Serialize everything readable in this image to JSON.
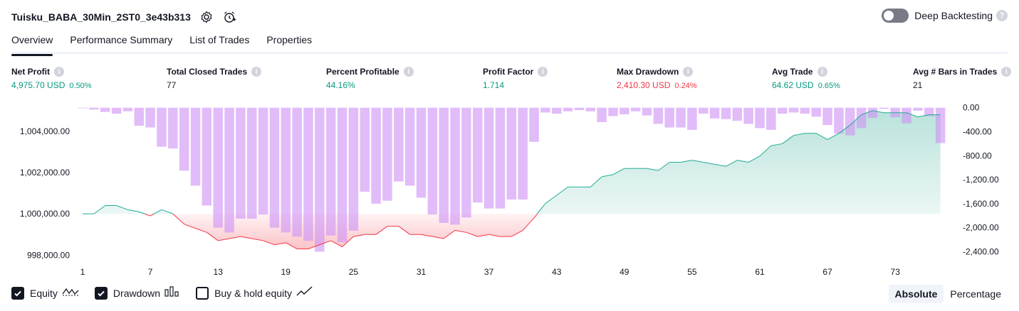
{
  "header": {
    "strategy_name": "Tuisku_BABA_30Min_2ST0_3e43b313",
    "deep_backtesting_label": "Deep Backtesting",
    "help_glyph": "?",
    "icons": [
      "settings-icon",
      "alarm-add-icon",
      "help-icon"
    ]
  },
  "tabs": [
    {
      "label": "Overview",
      "active": true
    },
    {
      "label": "Performance Summary"
    },
    {
      "label": "List of Trades"
    },
    {
      "label": "Properties"
    }
  ],
  "metrics": {
    "info_glyph": "i",
    "net_profit": {
      "label": "Net Profit",
      "value": "4,975.70 USD",
      "pct": "0.50%"
    },
    "total_closed_trades": {
      "label": "Total Closed Trades",
      "value": "77"
    },
    "percent_profitable": {
      "label": "Percent Profitable",
      "value": "44.16%"
    },
    "profit_factor": {
      "label": "Profit Factor",
      "value": "1.714"
    },
    "max_drawdown": {
      "label": "Max Drawdown",
      "value": "2,410.30 USD",
      "pct": "0.24%"
    },
    "avg_trade": {
      "label": "Avg Trade",
      "value": "64.62 USD",
      "pct": "0.65%"
    },
    "avg_bars": {
      "label": "Avg # Bars in Trades",
      "value": "21"
    }
  },
  "colors": {
    "profit": "#089981",
    "loss": "#f23645",
    "drawdown_bar": "#ce93f5",
    "equity_line": "#22ab94",
    "equity_fill": "#c4ebe0",
    "equity_loss_line": "#f23645",
    "equity_loss_fill": "#f7c8cd"
  },
  "chart_data": {
    "type": "bar",
    "x": [
      1,
      2,
      3,
      4,
      5,
      6,
      7,
      8,
      9,
      10,
      11,
      12,
      13,
      14,
      15,
      16,
      17,
      18,
      19,
      20,
      21,
      22,
      23,
      24,
      25,
      26,
      27,
      28,
      29,
      30,
      31,
      32,
      33,
      34,
      35,
      36,
      37,
      38,
      39,
      40,
      41,
      42,
      43,
      44,
      45,
      46,
      47,
      48,
      49,
      50,
      51,
      52,
      53,
      54,
      55,
      56,
      57,
      58,
      59,
      60,
      61,
      62,
      63,
      64,
      65,
      66,
      67,
      68,
      69,
      70,
      71,
      72,
      73,
      74,
      75,
      76,
      77
    ],
    "x_ticks": [
      "1",
      "7",
      "13",
      "19",
      "25",
      "31",
      "37",
      "43",
      "49",
      "55",
      "61",
      "67",
      "73"
    ],
    "left_axis": {
      "ticks": [
        "998,000.00",
        "1,000,000.00",
        "1,002,000.00",
        "1,004,000.00"
      ],
      "tick_values": [
        998000,
        1000000,
        1002000,
        1004000
      ],
      "range": [
        997700,
        1005200
      ]
    },
    "right_axis": {
      "ticks": [
        "0.00",
        "-400.00",
        "-800.00",
        "-1,200.00",
        "-1,600.00",
        "-2,000.00",
        "-2,400.00"
      ],
      "tick_values": [
        0,
        -400,
        -800,
        -1200,
        -1600,
        -2000,
        -2400
      ],
      "range": [
        -2560,
        20
      ]
    },
    "series": [
      {
        "name": "Equity",
        "type": "area",
        "baseline": 1000000,
        "values": [
          1000000,
          1000000,
          1000400,
          1000400,
          1000200,
          1000100,
          999900,
          1000200,
          1000000,
          999500,
          999300,
          999100,
          998700,
          998800,
          998900,
          998800,
          998700,
          998500,
          998600,
          998300,
          998300,
          998500,
          998700,
          998400,
          998900,
          999000,
          999000,
          999400,
          999400,
          999000,
          999000,
          998900,
          998800,
          999200,
          999100,
          998900,
          999000,
          998900,
          998900,
          999200,
          999800,
          1000500,
          1000900,
          1001300,
          1001300,
          1001300,
          1001800,
          1001900,
          1002200,
          1002200,
          1002200,
          1002100,
          1002500,
          1002500,
          1002600,
          1002500,
          1002400,
          1002300,
          1002600,
          1002500,
          1002800,
          1003300,
          1003400,
          1003800,
          1003900,
          1003900,
          1003600,
          1003900,
          1004300,
          1004800,
          1005000,
          1004900,
          1004900,
          1004900,
          1004700,
          1004800,
          1004800
        ]
      },
      {
        "name": "Drawdown",
        "type": "bar",
        "values": [
          0,
          -30,
          -70,
          -100,
          -60,
          -300,
          -330,
          -650,
          -680,
          -1050,
          -1300,
          -1630,
          -2000,
          -2080,
          -1850,
          -1850,
          -1780,
          -2000,
          -2080,
          -2150,
          -2220,
          -2400,
          -2130,
          -2240,
          -2050,
          -1400,
          -1600,
          -1550,
          -1230,
          -1300,
          -1500,
          -1780,
          -1920,
          -1950,
          -1830,
          -1580,
          -1680,
          -1680,
          -1530,
          -1530,
          -570,
          -80,
          -100,
          -60,
          -40,
          -60,
          -240,
          -140,
          -110,
          -60,
          -130,
          -270,
          -330,
          -330,
          -370,
          -100,
          -180,
          -190,
          -220,
          -270,
          -340,
          -370,
          -100,
          -80,
          -100,
          -150,
          -290,
          -430,
          -460,
          -340,
          -170,
          -20,
          -160,
          -260,
          -50,
          -140,
          -590
        ]
      }
    ],
    "legend": [
      "Equity",
      "Drawdown",
      "Buy & hold equity"
    ],
    "grid": false
  },
  "footer": {
    "checkboxes": [
      {
        "label": "Equity",
        "checked": true,
        "icon": "equity-line-icon"
      },
      {
        "label": "Drawdown",
        "checked": true,
        "icon": "drawdown-bars-icon"
      },
      {
        "label": "Buy & hold equity",
        "checked": false,
        "icon": "buy-hold-line-icon"
      }
    ],
    "modes": [
      {
        "label": "Absolute",
        "active": true
      },
      {
        "label": "Percentage"
      }
    ]
  }
}
